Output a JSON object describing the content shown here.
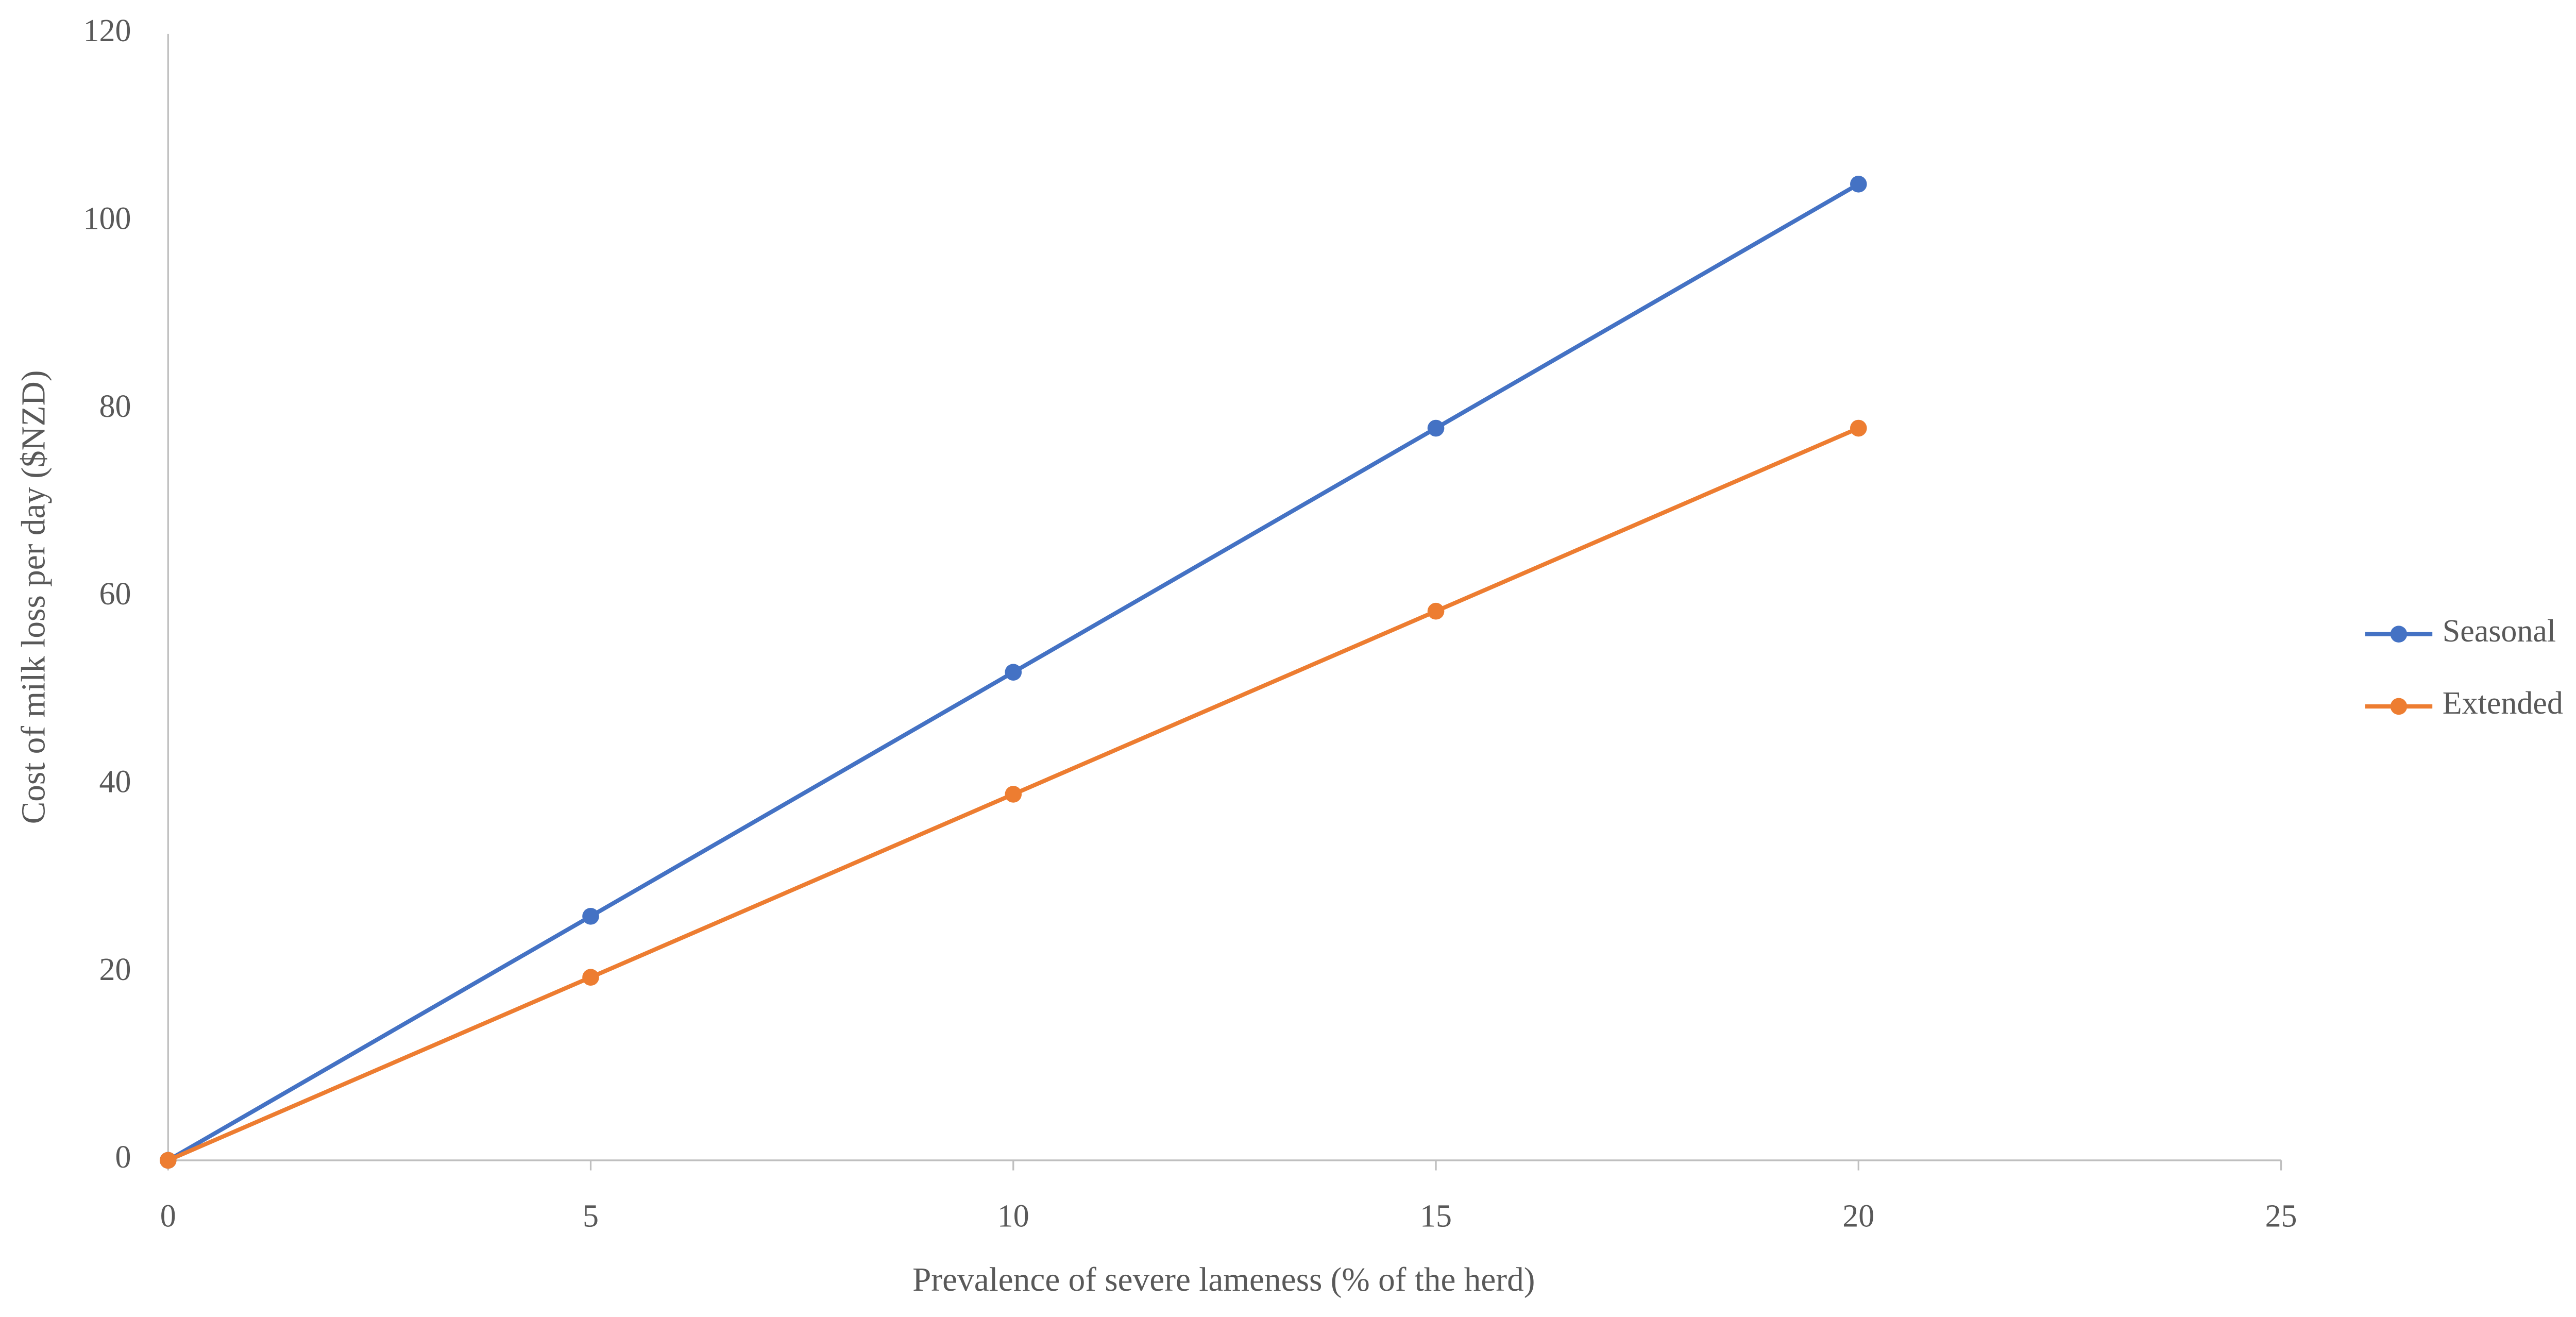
{
  "chart_data": {
    "type": "line",
    "x_label": "Prevalence of severe lameness (% of the herd)",
    "y_label": "Cost of milk loss per day ($NZD)",
    "x": [
      0,
      5,
      10,
      15,
      20
    ],
    "series": [
      {
        "name": "Seasonal",
        "color": "#4472c4",
        "values": [
          0,
          26,
          52,
          78,
          104
        ]
      },
      {
        "name": "Extended",
        "color": "#ed7d31",
        "values": [
          0,
          19.5,
          39,
          58.5,
          78
        ]
      }
    ],
    "xlim": [
      0,
      25
    ],
    "xticks": [
      0,
      5,
      10,
      15,
      20,
      25
    ],
    "ylim": [
      0,
      120
    ],
    "yticks": [
      0,
      20,
      40,
      60,
      80,
      100,
      120
    ],
    "grid": false,
    "legend": "right"
  }
}
